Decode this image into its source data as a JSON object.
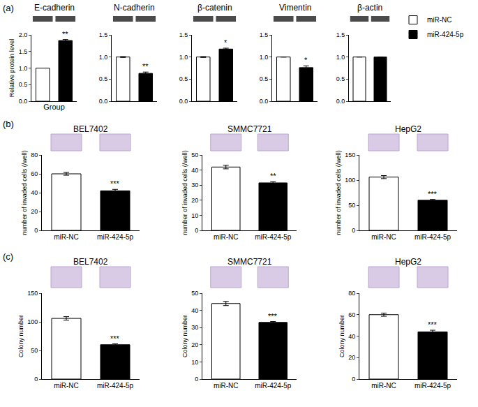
{
  "panel_labels": [
    "(a)",
    "(b)",
    "(c)"
  ],
  "chart_data": [
    {
      "type": "bar",
      "title": "E-cadherin",
      "xlabel": "Group",
      "ylabel": "Relative protein level",
      "categories": [
        "miR-NC",
        "miR-424-5p"
      ],
      "values": [
        1.0,
        1.83
      ],
      "errors": [
        0.0,
        0.03
      ],
      "colors": [
        "#ffffff",
        "#000000"
      ],
      "tick_labels": "y",
      "grid": false,
      "ylim": [
        0,
        2
      ],
      "yticks": [
        {
          "value": 0,
          "label": "0.0"
        },
        {
          "value": 0.5,
          "label": "0.5"
        },
        {
          "value": 1,
          "label": "1.0"
        },
        {
          "value": 1.5,
          "label": "1.5"
        },
        {
          "value": 2,
          "label": "2.0"
        }
      ],
      "annotations": [
        {
          "category": "miR-424-5p",
          "text": "**"
        }
      ]
    },
    {
      "type": "bar",
      "title": "N-cadherin",
      "categories": [
        "miR-NC",
        "miR-424-5p"
      ],
      "values": [
        1.0,
        0.63
      ],
      "errors": [
        0.01,
        0.03
      ],
      "colors": [
        "#ffffff",
        "#000000"
      ],
      "tick_labels": "y",
      "grid": false,
      "ylim": [
        0,
        1.5
      ],
      "yticks": [
        {
          "value": 0,
          "label": "0.0"
        },
        {
          "value": 0.5,
          "label": "0.5"
        },
        {
          "value": 1,
          "label": "1.0"
        },
        {
          "value": 1.5,
          "label": "1.5"
        }
      ],
      "annotations": [
        {
          "category": "miR-424-5p",
          "text": "**"
        }
      ]
    },
    {
      "type": "bar",
      "title": "β-catenin",
      "categories": [
        "miR-NC",
        "miR-424-5p"
      ],
      "values": [
        1.0,
        1.18
      ],
      "errors": [
        0.01,
        0.02
      ],
      "colors": [
        "#ffffff",
        "#000000"
      ],
      "tick_labels": "y",
      "grid": false,
      "ylim": [
        0,
        1.5
      ],
      "yticks": [
        {
          "value": 0,
          "label": "0.0"
        },
        {
          "value": 0.5,
          "label": "0.5"
        },
        {
          "value": 1,
          "label": "1.0"
        },
        {
          "value": 1.5,
          "label": "1.5"
        }
      ],
      "annotations": [
        {
          "category": "miR-424-5p",
          "text": "*"
        }
      ]
    },
    {
      "type": "bar",
      "title": "Vimentin",
      "categories": [
        "miR-NC",
        "miR-424-5p"
      ],
      "values": [
        1.0,
        0.76
      ],
      "errors": [
        0.0,
        0.04
      ],
      "colors": [
        "#ffffff",
        "#000000"
      ],
      "tick_labels": "y",
      "grid": false,
      "ylim": [
        0,
        1.5
      ],
      "yticks": [
        {
          "value": 0,
          "label": "0.0"
        },
        {
          "value": 0.5,
          "label": "0.5"
        },
        {
          "value": 1,
          "label": "1.0"
        },
        {
          "value": 1.5,
          "label": "1.5"
        }
      ],
      "annotations": [
        {
          "category": "miR-424-5p",
          "text": "*"
        }
      ]
    },
    {
      "type": "bar",
      "title": "β-actin",
      "legend": "top right",
      "categories": [
        "miR-NC",
        "miR-424-5p"
      ],
      "values": [
        1.0,
        1.0
      ],
      "errors": [
        0.0,
        0.0
      ],
      "colors": [
        "#ffffff",
        "#000000"
      ],
      "tick_labels": "y",
      "grid": false,
      "ylim": [
        0,
        1.5
      ],
      "yticks": [
        {
          "value": 0,
          "label": "0.0"
        },
        {
          "value": 0.5,
          "label": "0.5"
        },
        {
          "value": 1,
          "label": "1.0"
        },
        {
          "value": 1.5,
          "label": "1.5"
        }
      ]
    },
    {
      "type": "bar",
      "title": "BEL7402",
      "ylabel": "number of invaded cells (/well)",
      "categories": [
        "miR-NC",
        "miR-424-5p"
      ],
      "values": [
        60,
        42
      ],
      "errors": [
        1.5,
        1.5
      ],
      "colors": [
        "#ffffff",
        "#000000"
      ],
      "grid": false,
      "ylim": [
        0,
        80
      ],
      "yticks": [
        0,
        20,
        40,
        60,
        80
      ],
      "annotations": [
        {
          "category": "miR-424-5p",
          "text": "***"
        }
      ]
    },
    {
      "type": "bar",
      "title": "SMMC7721",
      "ylabel": "number of invaded cells (/well)",
      "categories": [
        "miR-NC",
        "miR-424-5p"
      ],
      "values": [
        42,
        31.5
      ],
      "errors": [
        1.2,
        0.8
      ],
      "colors": [
        "#ffffff",
        "#000000"
      ],
      "grid": false,
      "ylim": [
        0,
        50
      ],
      "yticks": [
        0,
        10,
        20,
        30,
        40,
        50
      ],
      "annotations": [
        {
          "category": "miR-424-5p",
          "text": "**"
        }
      ]
    },
    {
      "type": "bar",
      "title": "HepG2",
      "ylabel": "number of invaded cells (/well)",
      "categories": [
        "miR-NC",
        "miR-424-5p"
      ],
      "values": [
        106,
        60
      ],
      "errors": [
        3,
        1.5
      ],
      "colors": [
        "#ffffff",
        "#000000"
      ],
      "grid": false,
      "ylim": [
        0,
        150
      ],
      "yticks": [
        0,
        50,
        100,
        150
      ],
      "annotations": [
        {
          "category": "miR-424-5p",
          "text": "***"
        }
      ]
    },
    {
      "type": "bar",
      "title": "BEL7402",
      "ylabel": "Colony number",
      "categories": [
        "miR-NC",
        "miR-424-5p"
      ],
      "values": [
        106,
        60
      ],
      "errors": [
        3,
        1.5
      ],
      "colors": [
        "#ffffff",
        "#000000"
      ],
      "grid": false,
      "ylim": [
        0,
        150
      ],
      "yticks": [
        0,
        50,
        100,
        150
      ],
      "annotations": [
        {
          "category": "miR-424-5p",
          "text": "***"
        }
      ]
    },
    {
      "type": "bar",
      "title": "SMMC7721",
      "ylabel": "Colony number",
      "categories": [
        "miR-NC",
        "miR-424-5p"
      ],
      "values": [
        44,
        33
      ],
      "errors": [
        1.2,
        0.5
      ],
      "colors": [
        "#ffffff",
        "#000000"
      ],
      "grid": false,
      "ylim": [
        0,
        50
      ],
      "yticks": [
        0,
        10,
        20,
        30,
        40,
        50
      ],
      "annotations": [
        {
          "category": "miR-424-5p",
          "text": "***"
        }
      ]
    },
    {
      "type": "bar",
      "title": "HepG2",
      "ylabel": "Colony number",
      "categories": [
        "miR-NC",
        "miR-424-5p"
      ],
      "values": [
        60,
        44
      ],
      "errors": [
        1.5,
        1.5
      ],
      "colors": [
        "#ffffff",
        "#000000"
      ],
      "grid": false,
      "ylim": [
        0,
        80
      ],
      "yticks": [
        0,
        20,
        40,
        60,
        80
      ],
      "annotations": [
        {
          "category": "miR-424-5p",
          "text": "***"
        }
      ]
    }
  ]
}
